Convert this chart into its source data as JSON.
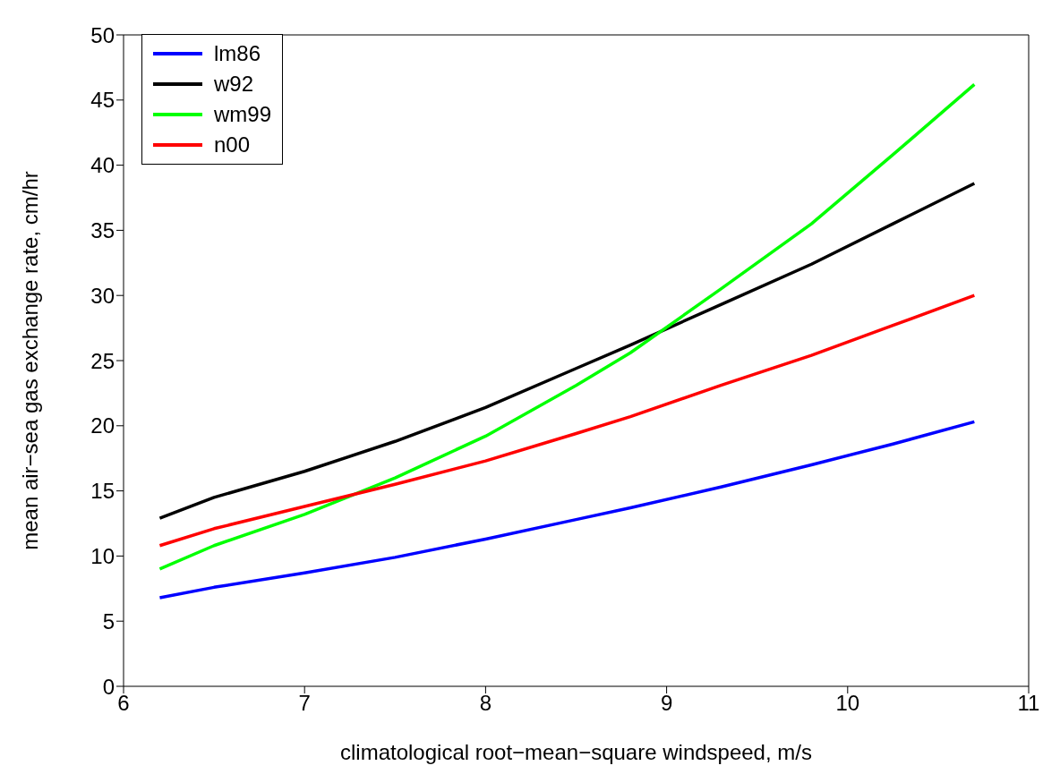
{
  "chart_data": {
    "type": "line",
    "xlabel": "climatological root−mean−square windspeed, m/s",
    "ylabel": "mean air−sea gas exchange rate, cm/hr",
    "x": [
      6.2,
      6.5,
      7,
      7.5,
      8,
      8.5,
      8.8,
      9.3,
      9.8,
      10.25,
      10.7
    ],
    "series": [
      {
        "name": "lm86",
        "color": "#0000ff",
        "values": [
          6.8,
          7.6,
          8.7,
          9.9,
          11.3,
          12.8,
          13.7,
          15.3,
          17.0,
          18.6,
          20.3
        ]
      },
      {
        "name": "w92",
        "color": "#000000",
        "values": [
          12.9,
          14.5,
          16.5,
          18.8,
          21.4,
          24.4,
          26.2,
          29.3,
          32.4,
          35.5,
          38.6
        ]
      },
      {
        "name": "wm99",
        "color": "#00ff00",
        "values": [
          9.0,
          10.8,
          13.2,
          16.0,
          19.2,
          23.1,
          25.6,
          30.5,
          35.5,
          40.8,
          46.2
        ]
      },
      {
        "name": "n00",
        "color": "#ff0000",
        "values": [
          10.8,
          12.1,
          13.8,
          15.5,
          17.3,
          19.4,
          20.7,
          23.1,
          25.4,
          27.7,
          30.0
        ]
      }
    ],
    "xlim": [
      6,
      11
    ],
    "xticks": [
      6,
      7,
      8,
      9,
      10,
      11
    ],
    "ylim": [
      0,
      50
    ],
    "yticks": [
      0,
      5,
      10,
      15,
      20,
      25,
      30,
      35,
      40,
      45,
      50
    ],
    "grid": false,
    "legend": "top left",
    "marker": "none",
    "line_style": "solid"
  }
}
